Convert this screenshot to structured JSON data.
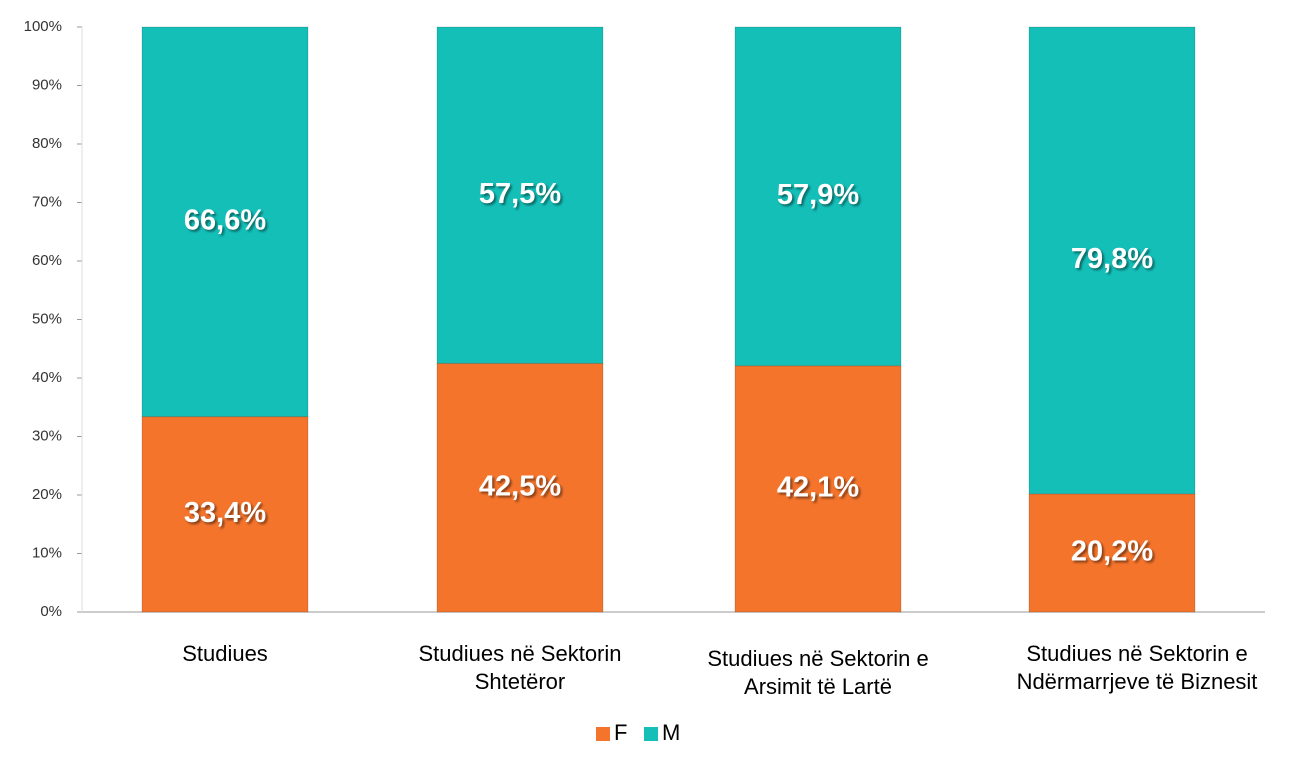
{
  "chart_data": {
    "type": "stacked_bar",
    "categories": [
      "Studiues",
      "Studiues në Sektorin Shtetëror",
      "Studiues në Sektorin e Arsimit të Lartë",
      "Studiues në Sektorin e Ndërmarrjeve të Biznesit"
    ],
    "series": [
      {
        "name": "F",
        "color": "#f4742c",
        "values": [
          33.4,
          42.5,
          42.1,
          20.2
        ],
        "value_labels": [
          "33,4%",
          "42,5%",
          "42,1%",
          "20,2%"
        ]
      },
      {
        "name": "M",
        "color": "#14bfb8",
        "values": [
          66.6,
          57.5,
          57.9,
          79.8
        ],
        "value_labels": [
          "66,6%",
          "57,5%",
          "57,9%",
          "79,8%"
        ]
      }
    ],
    "ylim": [
      0,
      100
    ],
    "yticks": [
      {
        "value": 0,
        "label": "0%"
      },
      {
        "value": 10,
        "label": "10%"
      },
      {
        "value": 20,
        "label": "20%"
      },
      {
        "value": 30,
        "label": "30%"
      },
      {
        "value": 40,
        "label": "40%"
      },
      {
        "value": 50,
        "label": "50%"
      },
      {
        "value": 60,
        "label": "60%"
      },
      {
        "value": 70,
        "label": "70%"
      },
      {
        "value": 80,
        "label": "80%"
      },
      {
        "value": 90,
        "label": "90%"
      },
      {
        "value": 100,
        "label": "100%"
      }
    ]
  }
}
